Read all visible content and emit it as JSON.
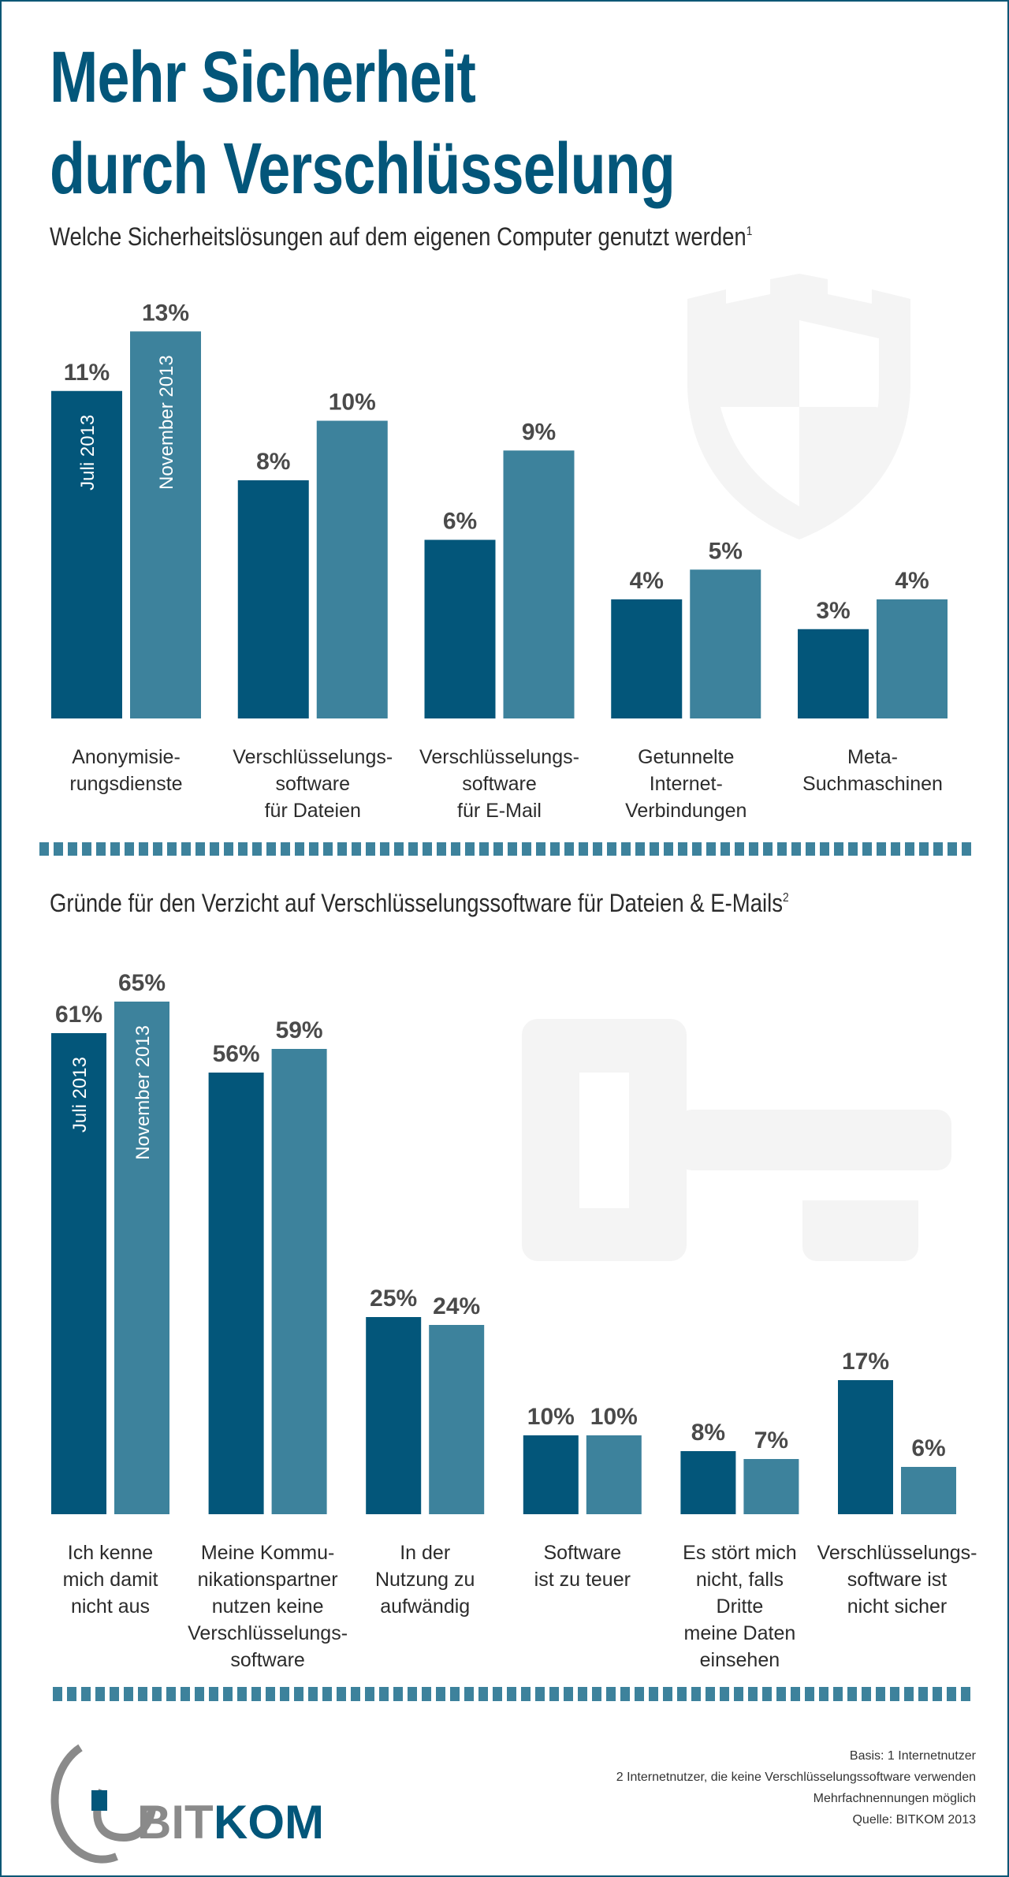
{
  "header": {
    "title_line1": "Mehr Sicherheit",
    "title_line2": "durch Verschlüsselung"
  },
  "colors": {
    "dark": "#03567a",
    "light": "#3d829c",
    "label": "#4a4a4a",
    "watermark": "#f4f4f4",
    "divider": "#3d829c"
  },
  "icons": {
    "top_watermark": "shield-icon",
    "bottom_watermark": "key-icon"
  },
  "chart_data": [
    {
      "type": "bar",
      "title": "Welche Sicherheitslösungen auf dem eigenen Computer genutzt werden",
      "title_sup": "1",
      "categories": [
        [
          "Anonymisie-",
          "rungsdienste"
        ],
        [
          "Verschlüsselungs-",
          "software",
          "für Dateien"
        ],
        [
          "Verschlüsselungs-",
          "software",
          "für E-Mail"
        ],
        [
          "Getunnelte",
          "Internet-",
          "Verbindungen"
        ],
        [
          "Meta-",
          "Suchmaschinen"
        ]
      ],
      "series": [
        {
          "name": "Juli 2013",
          "values": [
            11,
            8,
            6,
            4,
            3
          ],
          "labels": [
            "11%",
            "8%",
            "6%",
            "4%",
            "3%"
          ]
        },
        {
          "name": "November 2013",
          "values": [
            13,
            10,
            9,
            5,
            4
          ],
          "labels": [
            "13%",
            "10%",
            "9%",
            "5%",
            "4%"
          ]
        }
      ],
      "unit": "%",
      "ylim": [
        0,
        14
      ],
      "grid": false,
      "legend": "inside first bar pair"
    },
    {
      "type": "bar",
      "title": "Gründe für den Verzicht auf Verschlüsselungssoftware für Dateien & E-Mails",
      "title_sup": "2",
      "categories": [
        [
          "Ich kenne",
          "mich damit",
          "nicht aus"
        ],
        [
          "Meine Kommu-",
          "nikationspartner",
          "nutzen keine",
          "Verschlüsselungs-",
          "software"
        ],
        [
          "In der",
          "Nutzung zu",
          "aufwändig"
        ],
        [
          "Software",
          "ist zu teuer"
        ],
        [
          "Es stört mich",
          "nicht, falls",
          "Dritte",
          "meine Daten",
          "einsehen"
        ],
        [
          "Verschlüsselungs-",
          "software ist",
          "nicht sicher"
        ]
      ],
      "series": [
        {
          "name": "Juli 2013",
          "values": [
            61,
            56,
            25,
            10,
            8,
            17
          ],
          "labels": [
            "61%",
            "56%",
            "25%",
            "10%",
            "8%",
            "17%"
          ]
        },
        {
          "name": "November 2013",
          "values": [
            65,
            59,
            24,
            10,
            7,
            6
          ],
          "labels": [
            "65%",
            "59%",
            "24%",
            "10%",
            "7%",
            "6%"
          ]
        }
      ],
      "unit": "%",
      "ylim": [
        0,
        70
      ],
      "grid": false,
      "legend": "inside first bar pair"
    }
  ],
  "footer": {
    "logo_text_a": "BIT",
    "logo_text_b": "KOM",
    "notes": [
      "Basis: 1 Internetnutzer",
      "2 Internetnutzer, die keine Verschlüsselungssoftware verwenden",
      "Mehrfachnennungen möglich",
      "Quelle: BITKOM 2013"
    ]
  }
}
